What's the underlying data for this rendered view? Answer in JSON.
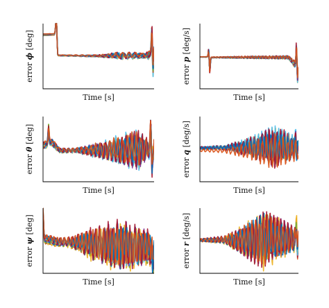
{
  "palette": [
    "#0072BD",
    "#D95319",
    "#EDB120",
    "#7E2F8E",
    "#77AC30",
    "#4DBEEE",
    "#A2142F"
  ],
  "chart_data": [
    {
      "type": "line",
      "id": "phi",
      "title": "",
      "xlabel": "Time [s]",
      "ylabel_prefix": "error ",
      "ylabel_symbol": "ϕ",
      "ylabel_unit": " [deg]",
      "xlim": [
        0,
        100
      ],
      "ylim": [
        -1,
        1
      ],
      "grid": false,
      "legend": "none",
      "series_count": 16,
      "profile": {
        "base": [
          [
            0,
            0.6
          ],
          [
            10,
            0.62
          ],
          [
            12,
            0.7
          ],
          [
            13,
            0.0
          ],
          [
            95,
            -0.05
          ],
          [
            100,
            -0.1
          ]
        ],
        "spikes": [
          [
            12,
            0.9
          ],
          [
            98,
            0.8
          ],
          [
            99,
            -0.7
          ]
        ],
        "spread": [
          [
            0,
            0.12
          ],
          [
            12,
            0.1
          ],
          [
            13,
            0.05
          ],
          [
            50,
            0.06
          ],
          [
            70,
            0.1
          ],
          [
            95,
            0.15
          ],
          [
            100,
            0.6
          ]
        ],
        "oscillation": [
          [
            0,
            0.0
          ],
          [
            50,
            0.02
          ],
          [
            70,
            0.08
          ],
          [
            90,
            0.05
          ],
          [
            100,
            0.1
          ]
        ],
        "frequency": 1.2
      }
    },
    {
      "type": "line",
      "id": "p",
      "title": "",
      "xlabel": "Time [s]",
      "ylabel_prefix": "error ",
      "ylabel_symbol": "p",
      "ylabel_unit": " [deg/s]",
      "xlim": [
        0,
        100
      ],
      "ylim": [
        -1,
        1
      ],
      "grid": false,
      "legend": "none",
      "series_count": 16,
      "profile": {
        "base": [
          [
            0,
            0.0
          ],
          [
            100,
            0.0
          ]
        ],
        "spikes": [
          [
            9,
            0.3
          ],
          [
            10,
            -0.45
          ],
          [
            98,
            0.7
          ],
          [
            99,
            -0.5
          ]
        ],
        "spread": [
          [
            0,
            0.03
          ],
          [
            8,
            0.03
          ],
          [
            10,
            0.1
          ],
          [
            12,
            0.05
          ],
          [
            90,
            0.05
          ],
          [
            100,
            0.5
          ]
        ],
        "oscillation": [
          [
            0,
            0.0
          ],
          [
            40,
            0.02
          ],
          [
            100,
            0.04
          ]
        ],
        "frequency": 2.0
      }
    },
    {
      "type": "line",
      "id": "theta",
      "title": "",
      "xlabel": "Time [s]",
      "ylabel_prefix": "error ",
      "ylabel_symbol": "θ",
      "ylabel_unit": " [deg]",
      "xlim": [
        0,
        100
      ],
      "ylim": [
        -1,
        1
      ],
      "grid": false,
      "legend": "none",
      "series_count": 16,
      "profile": {
        "base": [
          [
            0,
            0.1
          ],
          [
            8,
            0.2
          ],
          [
            15,
            -0.05
          ],
          [
            100,
            0.0
          ]
        ],
        "spikes": [
          [
            5,
            0.55
          ],
          [
            97,
            0.85
          ],
          [
            98,
            -0.7
          ]
        ],
        "spread": [
          [
            0,
            0.3
          ],
          [
            10,
            0.3
          ],
          [
            15,
            0.1
          ],
          [
            40,
            0.08
          ],
          [
            100,
            0.15
          ]
        ],
        "oscillation": [
          [
            0,
            0.05
          ],
          [
            30,
            0.05
          ],
          [
            55,
            0.2
          ],
          [
            85,
            0.45
          ],
          [
            95,
            0.2
          ],
          [
            100,
            0.3
          ]
        ],
        "frequency": 1.5
      }
    },
    {
      "type": "line",
      "id": "q",
      "title": "",
      "xlabel": "Time [s]",
      "ylabel_prefix": "error ",
      "ylabel_symbol": "q",
      "ylabel_unit": " [deg/s]",
      "xlim": [
        0,
        100
      ],
      "ylim": [
        -1,
        1
      ],
      "grid": false,
      "legend": "none",
      "series_count": 16,
      "profile": {
        "base": [
          [
            0,
            0.0
          ],
          [
            100,
            0.0
          ]
        ],
        "spikes": [
          [
            97,
            0.4
          ],
          [
            98,
            -0.3
          ]
        ],
        "spread": [
          [
            0,
            0.04
          ],
          [
            20,
            0.05
          ],
          [
            100,
            0.08
          ]
        ],
        "oscillation": [
          [
            0,
            0.03
          ],
          [
            25,
            0.05
          ],
          [
            50,
            0.2
          ],
          [
            75,
            0.45
          ],
          [
            90,
            0.3
          ],
          [
            100,
            0.2
          ]
        ],
        "frequency": 1.6
      }
    },
    {
      "type": "line",
      "id": "psi",
      "title": "",
      "xlabel": "Time [s]",
      "ylabel_prefix": "error ",
      "ylabel_symbol": "ψ",
      "ylabel_unit": " [deg]",
      "xlim": [
        0,
        100
      ],
      "ylim": [
        -1,
        1
      ],
      "grid": false,
      "legend": "none",
      "series_count": 16,
      "profile": {
        "base": [
          [
            0,
            0.25
          ],
          [
            15,
            0.05
          ],
          [
            100,
            -0.1
          ]
        ],
        "spikes": [
          [
            0,
            0.85
          ],
          [
            99,
            -0.75
          ]
        ],
        "spread": [
          [
            0,
            0.45
          ],
          [
            20,
            0.2
          ],
          [
            40,
            0.25
          ],
          [
            100,
            0.3
          ]
        ],
        "oscillation": [
          [
            0,
            0.05
          ],
          [
            25,
            0.1
          ],
          [
            45,
            0.35
          ],
          [
            70,
            0.55
          ],
          [
            90,
            0.4
          ],
          [
            100,
            0.35
          ]
        ],
        "frequency": 1.7
      }
    },
    {
      "type": "line",
      "id": "r",
      "title": "",
      "xlabel": "Time [s]",
      "ylabel_prefix": "error ",
      "ylabel_symbol": "r",
      "ylabel_unit": " [deg/s]",
      "xlim": [
        0,
        100
      ],
      "ylim": [
        -1,
        1
      ],
      "grid": false,
      "legend": "none",
      "series_count": 16,
      "profile": {
        "base": [
          [
            0,
            0.0
          ],
          [
            100,
            0.0
          ]
        ],
        "spikes": [
          [
            98,
            0.55
          ],
          [
            99,
            -0.4
          ]
        ],
        "spread": [
          [
            0,
            0.04
          ],
          [
            30,
            0.06
          ],
          [
            100,
            0.12
          ]
        ],
        "oscillation": [
          [
            0,
            0.03
          ],
          [
            25,
            0.08
          ],
          [
            45,
            0.35
          ],
          [
            65,
            0.65
          ],
          [
            85,
            0.4
          ],
          [
            100,
            0.2
          ]
        ],
        "frequency": 1.5
      }
    }
  ]
}
